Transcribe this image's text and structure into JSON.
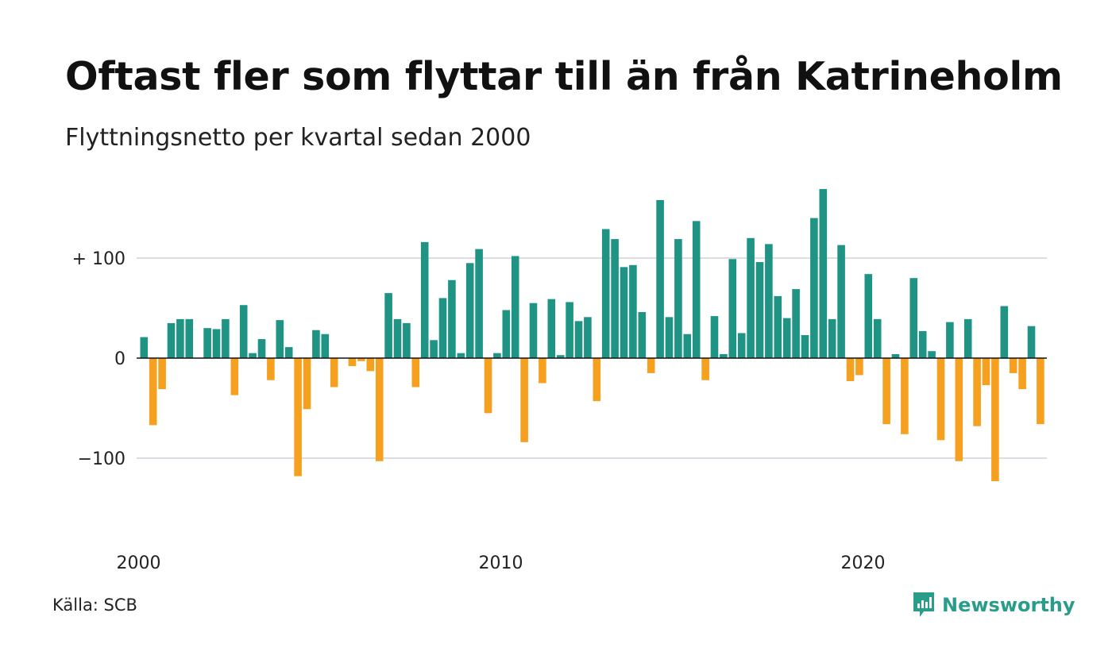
{
  "header": {
    "title": "Oftast fler som flyttar till än från Katrineholm",
    "subtitle": "Flyttningsnetto per kvartal sedan 2000"
  },
  "footer": {
    "source": "Källa: SCB",
    "brand": "Newsworthy",
    "brand_icon": "newsworthy-logo-icon"
  },
  "colors": {
    "positive": "#1f9484",
    "negative": "#f5a01e",
    "grid": "#dcdce2",
    "zero_line": "#111111",
    "brand": "#2a9d8a"
  },
  "chart_data": {
    "type": "bar",
    "title": "Oftast fler som flyttar till än från Katrineholm",
    "subtitle": "Flyttningsnetto per kvartal sedan 2000",
    "xlabel": "",
    "ylabel": "",
    "x_start": "2000-Q1",
    "x_ticks": [
      {
        "label": "2000",
        "year": 2000
      },
      {
        "label": "2010",
        "year": 2010
      },
      {
        "label": "2020",
        "year": 2020
      }
    ],
    "y_ticks": [
      {
        "label": "+ 100",
        "value": 100
      },
      {
        "label": "0",
        "value": 0
      },
      {
        "label": "−100",
        "value": -100
      }
    ],
    "ylim": [
      -160,
      180
    ],
    "grid": true,
    "legend": "none",
    "categories": [
      "2000 K1",
      "2000 K2",
      "2000 K3",
      "2000 K4",
      "2001 K1",
      "2001 K2",
      "2001 K3",
      "2001 K4",
      "2002 K1",
      "2002 K2",
      "2002 K3",
      "2002 K4",
      "2003 K1",
      "2003 K2",
      "2003 K3",
      "2003 K4",
      "2004 K1",
      "2004 K2",
      "2004 K3",
      "2004 K4",
      "2005 K1",
      "2005 K2",
      "2005 K3",
      "2005 K4",
      "2006 K1",
      "2006 K2",
      "2006 K3",
      "2006 K4",
      "2007 K1",
      "2007 K2",
      "2007 K3",
      "2007 K4",
      "2008 K1",
      "2008 K2",
      "2008 K3",
      "2008 K4",
      "2009 K1",
      "2009 K2",
      "2009 K3",
      "2009 K4",
      "2010 K1",
      "2010 K2",
      "2010 K3",
      "2010 K4",
      "2011 K1",
      "2011 K2",
      "2011 K3",
      "2011 K4",
      "2012 K1",
      "2012 K2",
      "2012 K3",
      "2012 K4",
      "2013 K1",
      "2013 K2",
      "2013 K3",
      "2013 K4",
      "2014 K1",
      "2014 K2",
      "2014 K3",
      "2014 K4",
      "2015 K1",
      "2015 K2",
      "2015 K3",
      "2015 K4",
      "2016 K1",
      "2016 K2",
      "2016 K3",
      "2016 K4",
      "2017 K1",
      "2017 K2",
      "2017 K3",
      "2017 K4",
      "2018 K1",
      "2018 K2",
      "2018 K3",
      "2018 K4",
      "2019 K1",
      "2019 K2",
      "2019 K3",
      "2019 K4",
      "2020 K1",
      "2020 K2",
      "2020 K3",
      "2020 K4",
      "2021 K1",
      "2021 K2",
      "2021 K3",
      "2021 K4",
      "2022 K1",
      "2022 K2",
      "2022 K3",
      "2022 K4",
      "2023 K1",
      "2023 K2",
      "2023 K3",
      "2023 K4",
      "2024 K1",
      "2024 K2",
      "2024 K3",
      "2024 K4"
    ],
    "values": [
      21,
      -67,
      -31,
      35,
      39,
      39,
      0,
      30,
      29,
      39,
      -37,
      53,
      5,
      19,
      -22,
      38,
      11,
      -118,
      -51,
      28,
      24,
      -29,
      0,
      -8,
      -3,
      -13,
      -103,
      65,
      39,
      35,
      -29,
      116,
      18,
      60,
      78,
      5,
      95,
      109,
      -55,
      5,
      48,
      102,
      -84,
      55,
      -25,
      59,
      3,
      56,
      37,
      41,
      -43,
      129,
      119,
      91,
      93,
      46,
      -15,
      158,
      41,
      119,
      24,
      137,
      -22,
      42,
      4,
      99,
      25,
      120,
      96,
      114,
      62,
      40,
      69,
      23,
      140,
      169,
      39,
      113,
      -23,
      -17,
      84,
      39,
      -66,
      4,
      -76,
      80,
      27,
      7,
      -82,
      36,
      -103,
      39,
      -68,
      -27,
      -123,
      52,
      -15,
      -31,
      32,
      -66
    ]
  }
}
